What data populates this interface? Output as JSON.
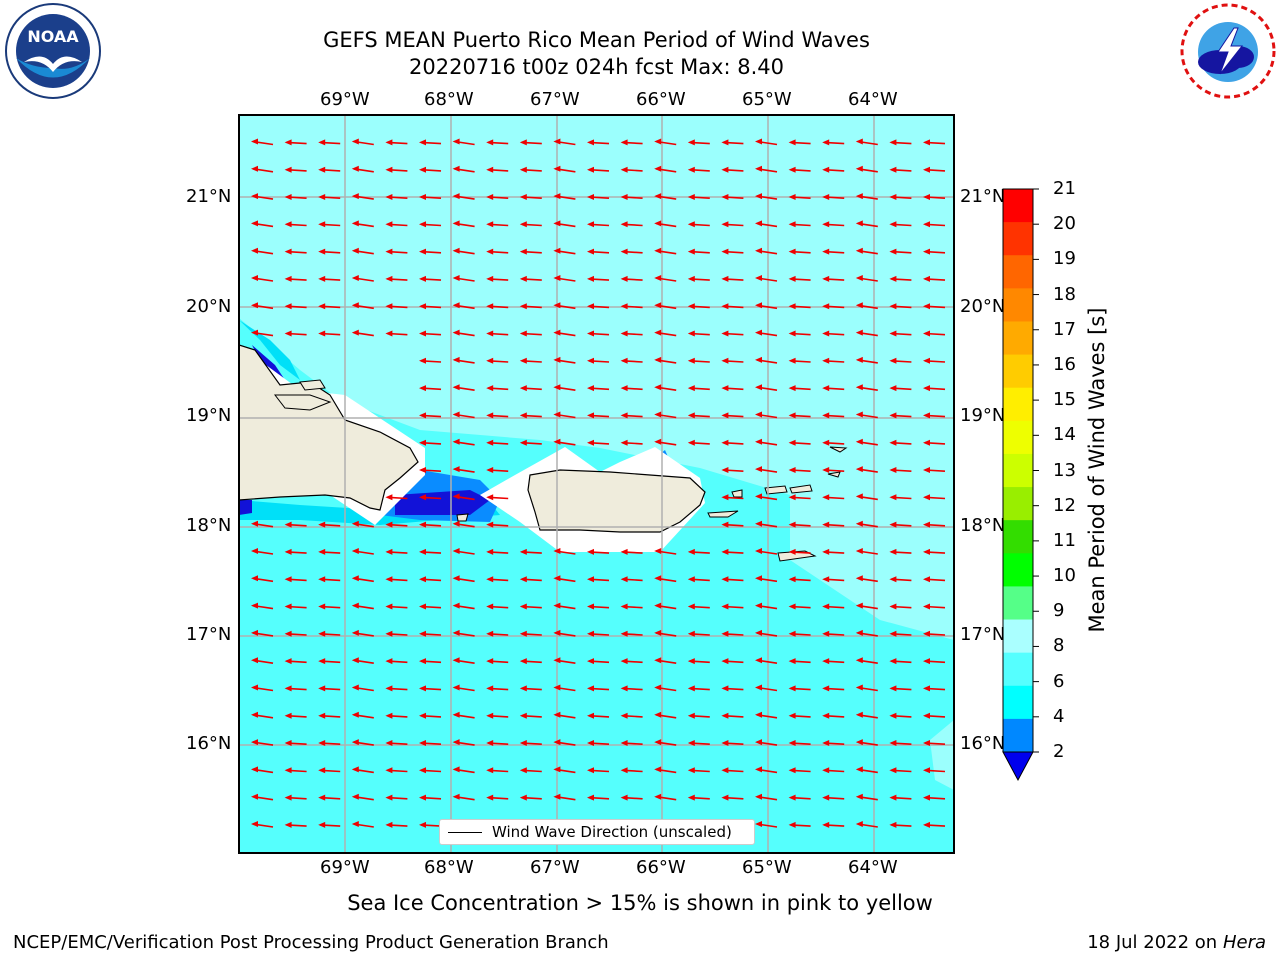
{
  "header": {
    "title_line1": "GEFS MEAN Puerto Rico Mean Period of Wind Waves",
    "title_line2": "20220716 t00z 024h fcst   Max: 8.40"
  },
  "logos": {
    "left": "noaa-logo",
    "right": "nws-logo",
    "noaa_text": "NOAA"
  },
  "map": {
    "lon_labels": [
      "69°W",
      "68°W",
      "67°W",
      "66°W",
      "65°W",
      "64°W"
    ],
    "lat_labels": [
      "21°N",
      "20°N",
      "19°N",
      "18°N",
      "17°N",
      "16°N"
    ],
    "legend_label": "Wind Wave Direction (unscaled)",
    "arrow_direction": "west",
    "colors": {
      "ocean_light": "#9bfffd",
      "ocean": "#55fffd",
      "land": "#efecdc",
      "arrow": "#ee0000"
    }
  },
  "colorbar": {
    "title": "Mean Period of Wind Waves [s]",
    "ticks": [
      "21",
      "20",
      "19",
      "18",
      "17",
      "16",
      "15",
      "14",
      "13",
      "12",
      "11",
      "10",
      "9",
      "8",
      "6",
      "4",
      "2"
    ],
    "colors": [
      "#ff0000",
      "#ff3300",
      "#ff6600",
      "#ff8800",
      "#ffaa00",
      "#ffcc00",
      "#ffee00",
      "#eeff00",
      "#ccff00",
      "#99ee00",
      "#33dd00",
      "#00ff00",
      "#55ff88",
      "#aaffff",
      "#55ffff",
      "#00ffff",
      "#0088ff"
    ],
    "extend_color": "#0000ee"
  },
  "footer": {
    "caption": "Sea Ice Concentration > 15% is shown in pink to yellow",
    "branch": "NCEP/EMC/Verification Post Processing Product Generation Branch",
    "date": "18 Jul 2022 on ",
    "machine": "Hera"
  }
}
